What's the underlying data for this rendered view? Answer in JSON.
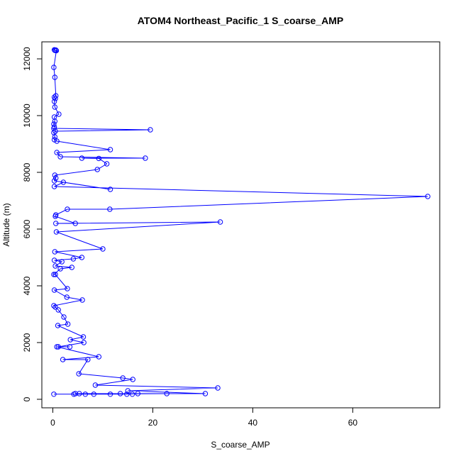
{
  "chart_data": {
    "type": "line",
    "title": "ATOM4 Northeast_Pacific_1 S_coarse_AMP",
    "xlabel": "S_coarse_AMP",
    "ylabel": "Altitude (m)",
    "xlim": [
      -2.2,
      77.4
    ],
    "ylim": [
      -300,
      12600
    ],
    "xticks": [
      0,
      20,
      40,
      60
    ],
    "yticks": [
      0,
      2000,
      4000,
      6000,
      8000,
      10000,
      12000
    ],
    "grid": false,
    "color": "#0000ff",
    "series": [
      {
        "x": [
          0.3,
          0.6,
          0.4,
          0.7,
          0.2,
          0.4,
          0.6,
          0.3,
          0.5,
          0.3,
          0.4,
          1.2,
          0.3,
          0.4,
          0.2,
          0.3,
          0.2,
          19.5,
          0.5,
          0.2,
          0.4,
          0.3,
          0.8,
          11.5,
          0.8,
          1.5,
          18.5,
          5.8,
          9.2,
          10.8,
          8.9,
          0.4,
          0.6,
          0.3,
          11.5,
          2.1,
          0.3,
          75.0,
          11.4,
          2.9,
          0.6,
          0.5,
          4.5,
          0.6,
          33.5,
          0.7,
          10.0,
          0.4,
          5.8,
          4.1,
          0.3,
          1.8,
          0.5,
          3.8,
          1.5,
          0.2,
          0.5,
          2.9,
          0.3,
          2.8,
          5.9,
          0.2,
          0.5,
          1.1,
          2.2,
          3.0,
          1.0,
          6.1,
          3.5,
          6.2,
          1.1,
          3.4,
          0.8,
          9.2,
          2.0,
          7.0,
          5.2,
          14.0,
          16.0,
          8.5,
          33.0,
          15.0,
          30.5,
          5.3,
          4.5,
          13.5,
          17.0,
          22.8,
          4.2,
          6.5,
          11.5,
          8.2,
          15.9,
          14.8,
          0.2
        ],
        "y": [
          12320,
          12310,
          12300,
          12290,
          11700,
          11350,
          10700,
          10650,
          10600,
          10500,
          10300,
          10050,
          9950,
          9800,
          9700,
          9600,
          9550,
          9500,
          9450,
          9400,
          9250,
          9150,
          9100,
          8800,
          8700,
          8550,
          8500,
          8500,
          8490,
          8300,
          8100,
          7900,
          7800,
          7700,
          7400,
          7650,
          7500,
          7150,
          6700,
          6700,
          6500,
          6450,
          6200,
          6200,
          6250,
          5900,
          5300,
          5200,
          5000,
          4950,
          4900,
          4850,
          4700,
          4650,
          4600,
          4400,
          4400,
          3900,
          3850,
          3600,
          3500,
          3300,
          3250,
          3150,
          2900,
          2650,
          2600,
          2200,
          2100,
          2000,
          1850,
          1850,
          1850,
          1500,
          1400,
          1400,
          900,
          750,
          700,
          500,
          400,
          300,
          200,
          200,
          200,
          200,
          200,
          200,
          180,
          180,
          180,
          180,
          180,
          180,
          180
        ]
      }
    ]
  }
}
